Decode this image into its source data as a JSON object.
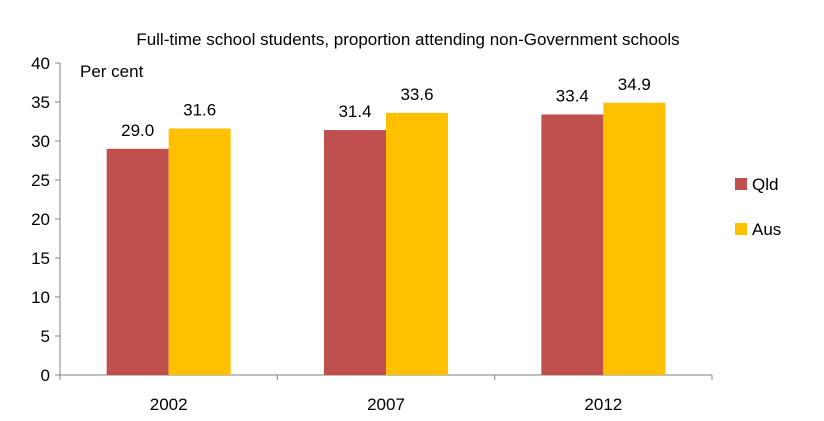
{
  "chart_data": {
    "type": "bar",
    "title": "Full-time school students, proportion attending non-Government schools",
    "ylabel": "Per cent",
    "xlabel": "",
    "categories": [
      "2002",
      "2007",
      "2012"
    ],
    "series": [
      {
        "name": "Qld",
        "values": [
          29.0,
          31.4,
          33.4
        ],
        "labels": [
          "29.0",
          "31.4",
          "33.4"
        ],
        "color": "#C0504D"
      },
      {
        "name": "Aus",
        "values": [
          31.6,
          33.6,
          34.9
        ],
        "labels": [
          "31.6",
          "33.6",
          "34.9"
        ],
        "color": "#FFC000"
      }
    ],
    "ylim": [
      0,
      40
    ],
    "yticks": [
      "0",
      "5",
      "10",
      "15",
      "20",
      "25",
      "30",
      "35",
      "40"
    ],
    "grid": false,
    "legend": "right"
  }
}
